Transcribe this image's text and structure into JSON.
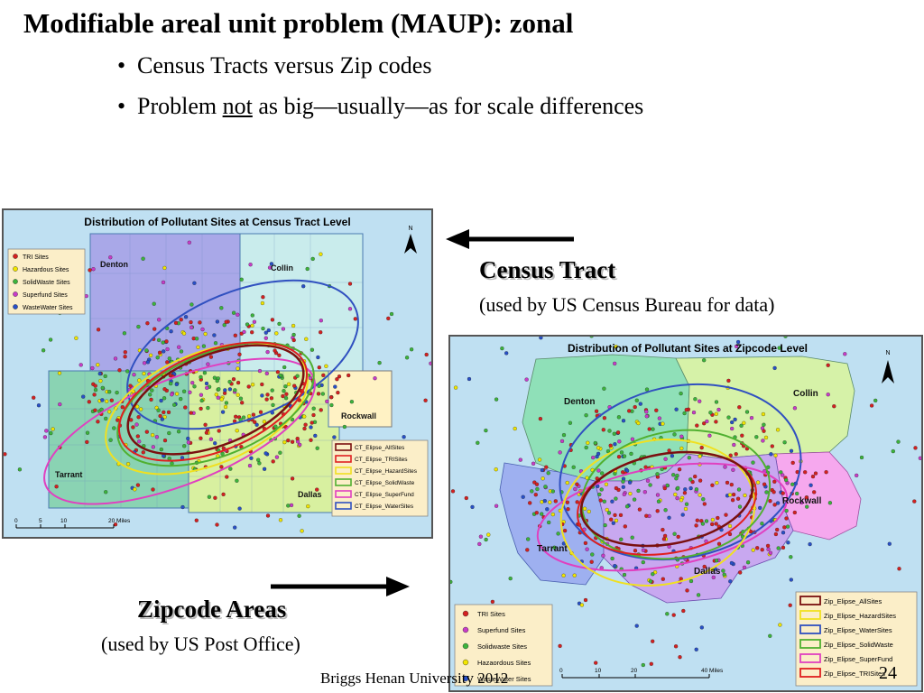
{
  "slide": {
    "title": "Modifiable areal unit problem (MAUP): zonal",
    "bullets": [
      {
        "text": "Census Tracts versus Zip codes"
      },
      {
        "pre": "Problem ",
        "underlined": "not",
        "post": " as big—usually—as for scale differences"
      }
    ],
    "bullet_glyph": "•",
    "footer": "Briggs Henan University 2012",
    "page_number": "24"
  },
  "annotations": {
    "census": {
      "heading": "Census Tract",
      "subtitle": "(used by US Census Bureau for data)"
    },
    "zip": {
      "heading": "Zipcode Areas",
      "subtitle": "(used by US Post Office)"
    }
  },
  "tract_map": {
    "title": "Distribution of Pollutant Sites at Census Tract Level",
    "north": "N",
    "counties": [
      "Denton",
      "Collin",
      "Rockwall",
      "Tarrant",
      "Dallas"
    ],
    "site_legend": [
      {
        "label": "TRI Sites",
        "color": "#d42020"
      },
      {
        "label": "Hazardous Sites",
        "color": "#f2e600"
      },
      {
        "label": "SolidWaste Sites",
        "color": "#3cb43c"
      },
      {
        "label": "Superfund Sites",
        "color": "#c83cc8"
      },
      {
        "label": "WasteWater Sites",
        "color": "#2850c8"
      }
    ],
    "ellipse_legend": [
      {
        "label": "CT_Elipse_AllSites",
        "color": "#7a1010"
      },
      {
        "label": "CT_Elipse_TRISites",
        "color": "#e02020"
      },
      {
        "label": "CT_Elipse_HazardSites",
        "color": "#f0e020"
      },
      {
        "label": "CT_Elipse_SolidWaste",
        "color": "#50b030"
      },
      {
        "label": "CT_Elipse_SuperFund",
        "color": "#e040c0"
      },
      {
        "label": "CT_Elipse_WaterSites",
        "color": "#3050c0"
      }
    ],
    "scale": {
      "ticks": [
        "0",
        "5",
        "10",
        "20 Miles"
      ]
    }
  },
  "zip_map": {
    "title": "Distribution of Pollutant Sites at Zipcode Level",
    "north": "N",
    "counties": [
      "Denton",
      "Collin",
      "Rockwall",
      "Tarrant",
      "Dallas"
    ],
    "site_legend": [
      {
        "label": "TRI Sites",
        "color": "#d42020"
      },
      {
        "label": "Superfund Sites",
        "color": "#c83cc8"
      },
      {
        "label": "Solidwaste Sites",
        "color": "#3cb43c"
      },
      {
        "label": "Hazaordous Sites",
        "color": "#f2e600"
      },
      {
        "label": "WasteWater Sites",
        "color": "#2850c8"
      }
    ],
    "ellipse_legend": [
      {
        "label": "Zip_Elipse_AllSites",
        "color": "#7a1010"
      },
      {
        "label": "Zip_Elipse_HazardSites",
        "color": "#f0e020"
      },
      {
        "label": "Zip_Elipse_WaterSites",
        "color": "#3050c0"
      },
      {
        "label": "Zip_Elipse_SolidWaste",
        "color": "#50b030"
      },
      {
        "label": "Zip_Elipse_SuperFund",
        "color": "#e040c0"
      },
      {
        "label": "Zip_Elipse_TRISites",
        "color": "#e02020"
      }
    ],
    "scale": {
      "ticks": [
        "0",
        "10",
        "20",
        "40 Miles"
      ]
    }
  }
}
